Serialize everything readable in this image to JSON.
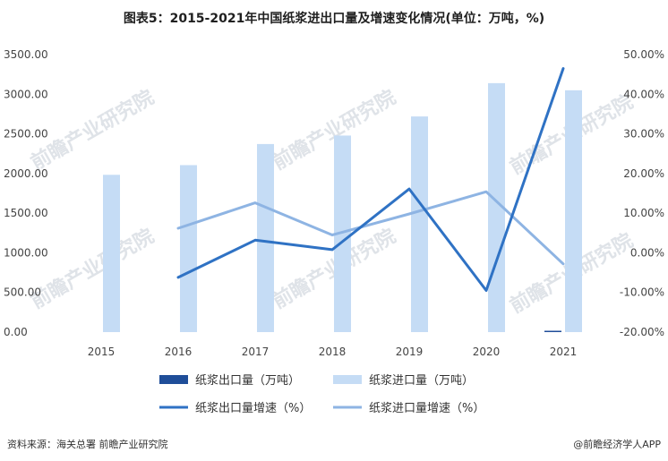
{
  "title": "图表5：2015-2021年中国纸浆进出口量及增速变化情况(单位：万吨，%)",
  "footer": {
    "source": "资料来源：海关总署 前瞻产业研究院",
    "brand": "@前瞻经济学人APP"
  },
  "watermark": "前瞻产业研究院",
  "colors": {
    "export_bar": "#1f4e99",
    "import_bar": "#c5dcf5",
    "export_line": "#2f72c4",
    "import_line": "#8eb4e3"
  },
  "chart_data": {
    "type": "bar",
    "categories": [
      "2015",
      "2016",
      "2017",
      "2018",
      "2019",
      "2020",
      "2021"
    ],
    "y_left": {
      "min": 0,
      "max": 3500,
      "step": 500,
      "tick_labels": [
        "0.00",
        "500.00",
        "1000.00",
        "1500.00",
        "2000.00",
        "2500.00",
        "3000.00",
        "3500.00"
      ]
    },
    "y_right": {
      "min": -20,
      "max": 50,
      "step": 10,
      "tick_labels": [
        "-20.00%",
        "-10.00%",
        "0.00%",
        "10.00%",
        "20.00%",
        "30.00%",
        "40.00%",
        "50.00%"
      ]
    },
    "series": [
      {
        "name": "纸浆出口量（万吨）",
        "kind": "bar",
        "axis": "left",
        "values": [
          0,
          0,
          0,
          0,
          0,
          0,
          10
        ]
      },
      {
        "name": "纸浆进口量（万吨）",
        "kind": "bar",
        "axis": "left",
        "values": [
          1984,
          2106,
          2372,
          2479,
          2720,
          3140,
          3050
        ]
      },
      {
        "name": "纸浆出口量增速（%）",
        "kind": "line",
        "axis": "right",
        "values": [
          null,
          -6.2,
          3.2,
          0.8,
          16.1,
          -9.5,
          46.5
        ]
      },
      {
        "name": "纸浆进口量增速（%）",
        "kind": "line",
        "axis": "right",
        "values": [
          null,
          6.2,
          12.6,
          4.5,
          9.8,
          15.4,
          -2.8
        ]
      }
    ],
    "grid": false,
    "legend_position": "bottom"
  }
}
